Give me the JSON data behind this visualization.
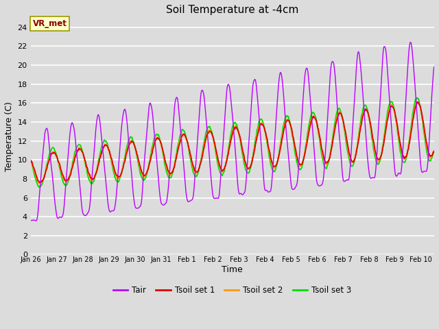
{
  "title": "Soil Temperature at -4cm",
  "xlabel": "Time",
  "ylabel": "Temperature (C)",
  "ylim": [
    0,
    25
  ],
  "yticks": [
    0,
    2,
    4,
    6,
    8,
    10,
    12,
    14,
    16,
    18,
    20,
    22,
    24
  ],
  "bg_color": "#dcdcdc",
  "plot_bg_color": "#dcdcdc",
  "grid_color": "#ffffff",
  "colors": {
    "Tair": "#bb00ff",
    "Tsoil1": "#dd0000",
    "Tsoil2": "#ff9900",
    "Tsoil3": "#00dd00"
  },
  "legend_labels": [
    "Tair",
    "Tsoil set 1",
    "Tsoil set 2",
    "Tsoil set 3"
  ],
  "annotation_text": "VR_met",
  "annotation_color": "#8b0000",
  "annotation_bg": "#ffffcc",
  "x_tick_labels": [
    "Jan 26",
    "Jan 27",
    "Jan 28",
    "Jan 29",
    "Jan 30",
    "Jan 31",
    "Feb 1",
    "Feb 2",
    "Feb 3",
    "Feb 4",
    "Feb 5",
    "Feb 6",
    "Feb 7",
    "Feb 8",
    "Feb 9",
    "Feb 10"
  ],
  "n_days": 15.5
}
